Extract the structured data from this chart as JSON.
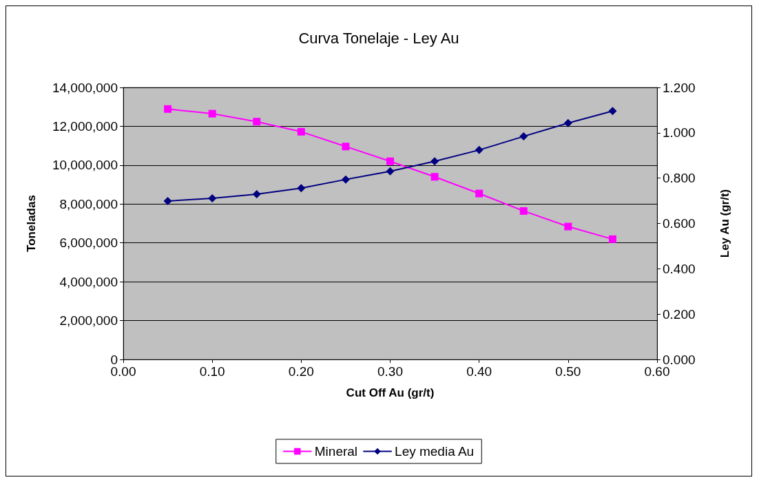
{
  "chart_data": {
    "type": "line",
    "title": "Curva Tonelaje - Ley Au",
    "xlabel": "Cut Off Au (gr/t)",
    "ylabel": "Toneladas",
    "y2label": "Ley Au (gr/t)",
    "x": [
      0.05,
      0.1,
      0.15,
      0.2,
      0.25,
      0.3,
      0.35,
      0.4,
      0.45,
      0.5,
      0.55
    ],
    "series": [
      {
        "name": "Mineral",
        "color": "#ff00ff",
        "marker": "square",
        "values": [
          12890000,
          12650000,
          12240000,
          11720000,
          10960000,
          10200000,
          9400000,
          8540000,
          7640000,
          6840000,
          6190000
        ]
      },
      {
        "name": "Ley media Au",
        "color": "#000080",
        "marker": "diamond",
        "axis": "y2",
        "values": [
          0.699,
          0.711,
          0.729,
          0.756,
          0.794,
          0.83,
          0.874,
          0.924,
          0.984,
          1.043,
          1.096
        ]
      }
    ],
    "xlim": [
      0,
      0.6
    ],
    "xticks": [
      {
        "value": 0,
        "label": "0.00"
      },
      {
        "value": 0.1,
        "label": "0.10"
      },
      {
        "value": 0.2,
        "label": "0.20"
      },
      {
        "value": 0.3,
        "label": "0.30"
      },
      {
        "value": 0.4,
        "label": "0.40"
      },
      {
        "value": 0.5,
        "label": "0.50"
      },
      {
        "value": 0.6,
        "label": "0.60"
      }
    ],
    "ylim": [
      0,
      14000000
    ],
    "yticks": [
      0,
      {
        "value": 2000000,
        "label": "2,000,000"
      },
      {
        "value": 4000000,
        "label": "4,000,000"
      },
      {
        "value": 6000000,
        "label": "6,000,000"
      },
      {
        "value": 8000000,
        "label": "8,000,000"
      },
      {
        "value": 10000000,
        "label": "10,000,000"
      },
      {
        "value": 12000000,
        "label": "12,000,000"
      },
      {
        "value": 14000000,
        "label": "14,000,000"
      }
    ],
    "y2lim": [
      0,
      1.2
    ],
    "y2ticks": [
      {
        "value": 0,
        "label": "0.000"
      },
      {
        "value": 0.2,
        "label": "0.200"
      },
      {
        "value": 0.4,
        "label": "0.400"
      },
      {
        "value": 0.6,
        "label": "0.600"
      },
      {
        "value": 0.8,
        "label": "0.800"
      },
      {
        "value": 1,
        "label": "1.000"
      },
      {
        "value": 1.2,
        "label": "1.200"
      }
    ],
    "grid": "y",
    "legend": "bottom",
    "line_style": "solid"
  }
}
